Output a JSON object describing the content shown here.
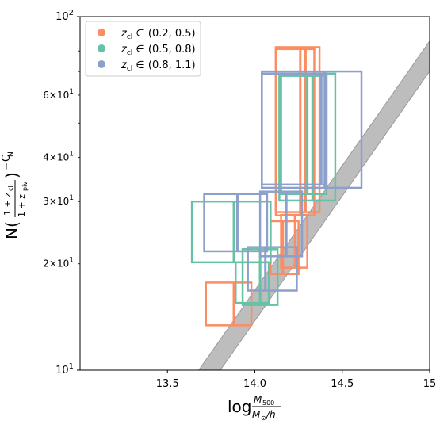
{
  "chart_data": {
    "type": "scatter",
    "title": "",
    "xlabel": {
      "main": "log",
      "num": "M",
      "num_sub": "500",
      "den_main": "M",
      "den_sub": "⊙",
      "den_tail": "/h"
    },
    "ylabel": "N((1+z_cl)/(1+z_piv))^(-C_N)",
    "xlim": [
      13.0,
      15.0
    ],
    "ylim": [
      10,
      100
    ],
    "yscale": "log",
    "grid": false,
    "legend_position": "top-left",
    "x_ticks": [
      {
        "value": 13.5,
        "label": "13.5"
      },
      {
        "value": 14.0,
        "label": "14.0"
      },
      {
        "value": 14.5,
        "label": "14.5"
      },
      {
        "value": 15.0,
        "label": "15"
      }
    ],
    "y_major_ticks": [
      {
        "value": 10,
        "base": "10",
        "exp": "1"
      },
      {
        "value": 100,
        "base": "10",
        "exp": "2"
      }
    ],
    "y_minor_ticks": [
      {
        "value": 20,
        "mant": "2",
        "base": "10",
        "exp": "1"
      },
      {
        "value": 30,
        "mant": "3",
        "base": "10",
        "exp": "1"
      },
      {
        "value": 40,
        "mant": "4",
        "base": "10",
        "exp": "1"
      },
      {
        "value": 50,
        "mant": "",
        "base": "",
        "exp": ""
      },
      {
        "value": 60,
        "mant": "6",
        "base": "10",
        "exp": "1"
      },
      {
        "value": 70,
        "mant": "",
        "base": "",
        "exp": ""
      },
      {
        "value": 80,
        "mant": "",
        "base": "",
        "exp": ""
      },
      {
        "value": 90,
        "mant": "",
        "base": "",
        "exp": ""
      }
    ],
    "band": {
      "color": "#bdbdbd",
      "edge_color": "#999999",
      "lower": [
        [
          13.6,
          7.2
        ],
        [
          15.2,
          97.0
        ]
      ],
      "upper": [
        [
          13.6,
          8.8
        ],
        [
          15.2,
          118.0
        ]
      ]
    },
    "series": [
      {
        "name": "z_cl ∈ (0.2, 0.5)",
        "color": "#fc8d62",
        "boxes": [
          {
            "x_err": [
              13.72,
              13.98
            ],
            "y_err": [
              13.4,
              17.7
            ],
            "x": 13.88
          },
          {
            "x_err": [
              14.09,
              14.25
            ],
            "y_err": [
              18.7,
              26.4
            ],
            "x": 14.16
          },
          {
            "x_err": [
              14.15,
              14.3
            ],
            "y_err": [
              19.5,
              27.5
            ],
            "x": 14.23
          },
          {
            "x_err": [
              14.12,
              14.34
            ],
            "y_err": [
              27.4,
              81.0
            ],
            "x": 14.26
          },
          {
            "x_err": [
              14.12,
              14.37
            ],
            "y_err": [
              28.0,
              82.0
            ],
            "x": 14.29
          }
        ]
      },
      {
        "name": "z_cl ∈ (0.5, 0.8)",
        "color": "#66c2a5",
        "boxes": [
          {
            "x_err": [
              13.64,
              14.09
            ],
            "y_err": [
              20.2,
              30.0
            ],
            "x": 13.88
          },
          {
            "x_err": [
              13.93,
              14.13
            ],
            "y_err": [
              15.3,
              22.0
            ],
            "x": 14.03
          },
          {
            "x_err": [
              13.89,
              14.08
            ],
            "y_err": [
              15.5,
              20.2
            ],
            "x": 14.03
          },
          {
            "x_err": [
              14.14,
              14.46
            ],
            "y_err": [
              30.2,
              69.0
            ],
            "x": 14.33
          },
          {
            "x_err": [
              14.15,
              14.41
            ],
            "y_err": [
              31.5,
              68.0
            ],
            "x": 14.3
          }
        ]
      },
      {
        "name": "z_cl ∈ (0.8, 1.1)",
        "color": "#8da0cb",
        "boxes": [
          {
            "x_err": [
              13.71,
              14.07
            ],
            "y_err": [
              21.7,
              31.5
            ],
            "x": 13.9
          },
          {
            "x_err": [
              13.96,
              14.24
            ],
            "y_err": [
              16.8,
              22.3
            ],
            "x": 14.06
          },
          {
            "x_err": [
              14.03,
              14.27
            ],
            "y_err": [
              21.0,
              32.0
            ],
            "x": 14.18
          },
          {
            "x_err": [
              14.04,
              14.61
            ],
            "y_err": [
              32.8,
              70.0
            ],
            "x": 14.4
          },
          {
            "x_err": [
              14.04,
              14.41
            ],
            "y_err": [
              33.5,
              69.0
            ],
            "x": 14.38
          }
        ]
      }
    ],
    "legend": [
      {
        "label": "z",
        "sub": "cl",
        "range": " ∈ (0.2, 0.5)",
        "color": "#fc8d62"
      },
      {
        "label": "z",
        "sub": "cl",
        "range": " ∈ (0.5, 0.8)",
        "color": "#66c2a5"
      },
      {
        "label": "z",
        "sub": "cl",
        "range": " ∈ (0.8, 1.1)",
        "color": "#8da0cb"
      }
    ]
  }
}
